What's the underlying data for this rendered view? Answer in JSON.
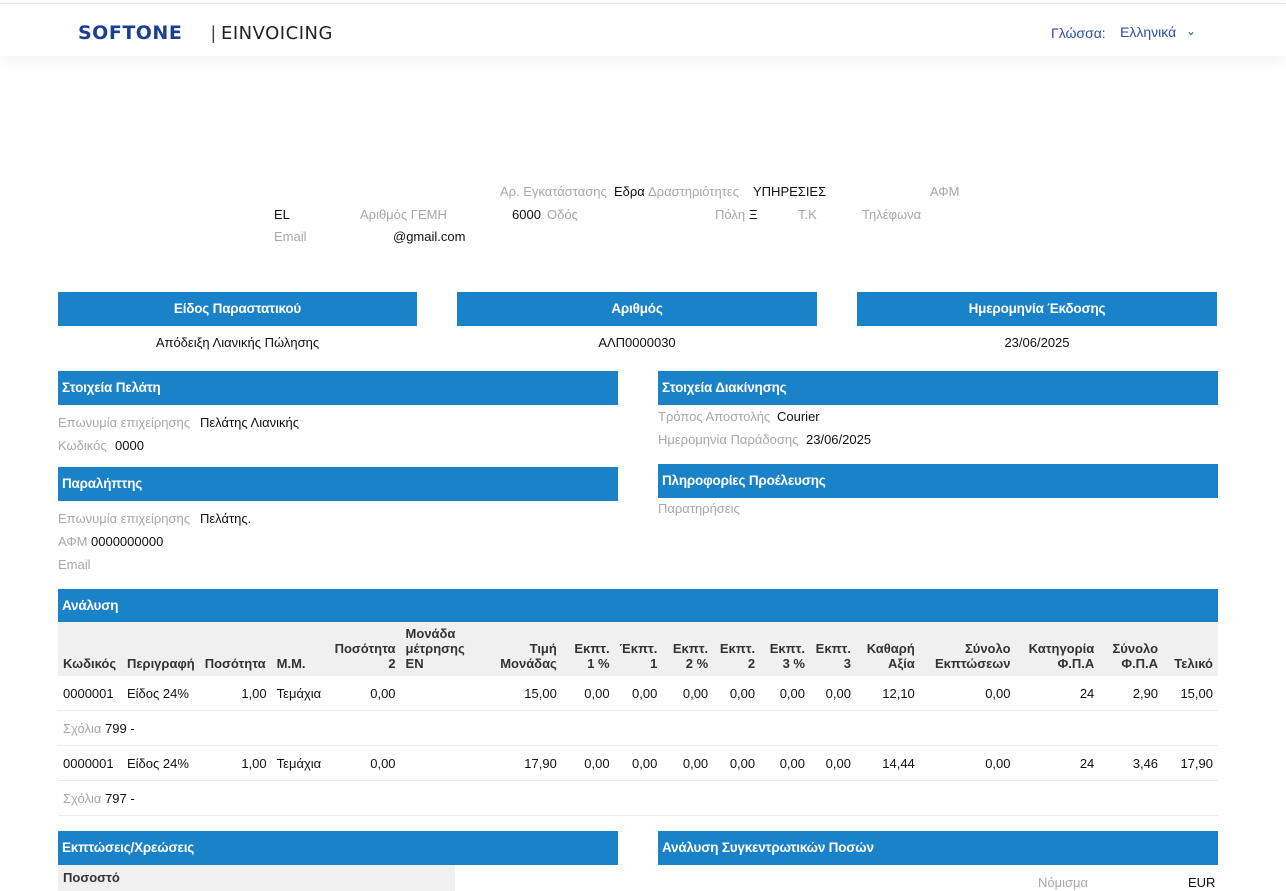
{
  "header": {
    "brand": "SOFTONE",
    "separator": "|",
    "product": "EINVOICING",
    "language_label": "Γλώσσα:",
    "language_value": "Ελληνικά"
  },
  "issuer": {
    "branch_label": "Αρ. Εγκατάστασης",
    "branch_value": "Εδρα",
    "activity_label": "Δραστηριότητες",
    "activity_value": "ΥΠΗΡΕΣΙΕΣ",
    "vat_label": "ΑΦΜ",
    "country_value": "EL",
    "gemi_label": "Αριθμός ΓΕΜΗ",
    "postal_value": "6000",
    "street_label": "Οδός",
    "city_label": "Πόλη",
    "city_value": "Ξ",
    "zip_label": "Τ.Κ",
    "phone_label": "Τηλέφωνα",
    "email_label": "Email",
    "email_value": "@gmail.com"
  },
  "doc_info": {
    "type_header": "Είδος Παραστατικού",
    "number_header": "Αριθμός",
    "date_header": "Ημερομηνία Έκδοσης",
    "type_value": "Απόδειξη Λιανικής Πώλησης",
    "number_value": "ΑΛΠ0000030",
    "date_value": "23/06/2025"
  },
  "customer": {
    "title": "Στοιχεία Πελάτη",
    "name_label": "Επωνυμία επιχείρησης",
    "name_value": "Πελάτης Λιανικής",
    "code_label": "Κωδικός",
    "code_value": "0000"
  },
  "shipping": {
    "title": "Στοιχεία Διακίνησης",
    "method_label": "Τρόπος Αποστολής",
    "method_value": "Courier",
    "delivery_label": "Ημερομηνία Παράδοσης",
    "delivery_value": "23/06/2025"
  },
  "recipient": {
    "title": "Παραλήπτης",
    "name_label": "Επωνυμία επιχείρησης",
    "name_value": "Πελάτης.",
    "vat_label": "ΑΦΜ",
    "vat_value": "0000000000",
    "email_label": "Email"
  },
  "origin": {
    "title": "Πληροφορίες Προέλευσης",
    "notes_label": "Παρατηρήσεις"
  },
  "analysis": {
    "title": "Ανάλυση",
    "columns": [
      "Κωδικός",
      "Περιγραφή",
      "Ποσότητα",
      "Μ.Μ.",
      "Ποσότητα 2",
      "Μονάδα μέτρησης ΕΝ",
      "Τιμή Μονάδας",
      "Εκπτ. 1 %",
      "Έκπτ. 1",
      "Εκπτ. 2 %",
      "Εκπτ. 2",
      "Εκπτ. 3 %",
      "Εκπτ. 3",
      "Καθαρή Αξία",
      "Σύνολο Εκπτώσεων",
      "Κατηγορία Φ.Π.Α",
      "Σύνολο Φ.Π.Α",
      "Τελικό"
    ],
    "rows": [
      {
        "cells": [
          "0000001",
          "Είδος 24%",
          "1,00",
          "Τεμάχια",
          "0,00",
          "",
          "15,00",
          "0,00",
          "0,00",
          "0,00",
          "0,00",
          "0,00",
          "0,00",
          "12,10",
          "0,00",
          "24",
          "2,90",
          "15,00"
        ],
        "notes_label": "Σχόλια",
        "notes_value": "799 -"
      },
      {
        "cells": [
          "0000001",
          "Είδος 24%",
          "1,00",
          "Τεμάχια",
          "0,00",
          "",
          "17,90",
          "0,00",
          "0,00",
          "0,00",
          "0,00",
          "0,00",
          "0,00",
          "14,44",
          "0,00",
          "24",
          "3,46",
          "17,90"
        ],
        "notes_label": "Σχόλια",
        "notes_value": "797 -"
      }
    ]
  },
  "discounts": {
    "title": "Εκπτώσεις/Χρεώσεις",
    "percent_header": "Ποσοστό"
  },
  "totals": {
    "title": "Ανάλυση Συγκεντρωτικών Ποσών",
    "currency_label": "Νόμισμα",
    "currency_value": "EUR"
  },
  "colors": {
    "accent": "#1a82c8",
    "brand": "#1b3f92",
    "label_gray": "#a8a8a8"
  }
}
